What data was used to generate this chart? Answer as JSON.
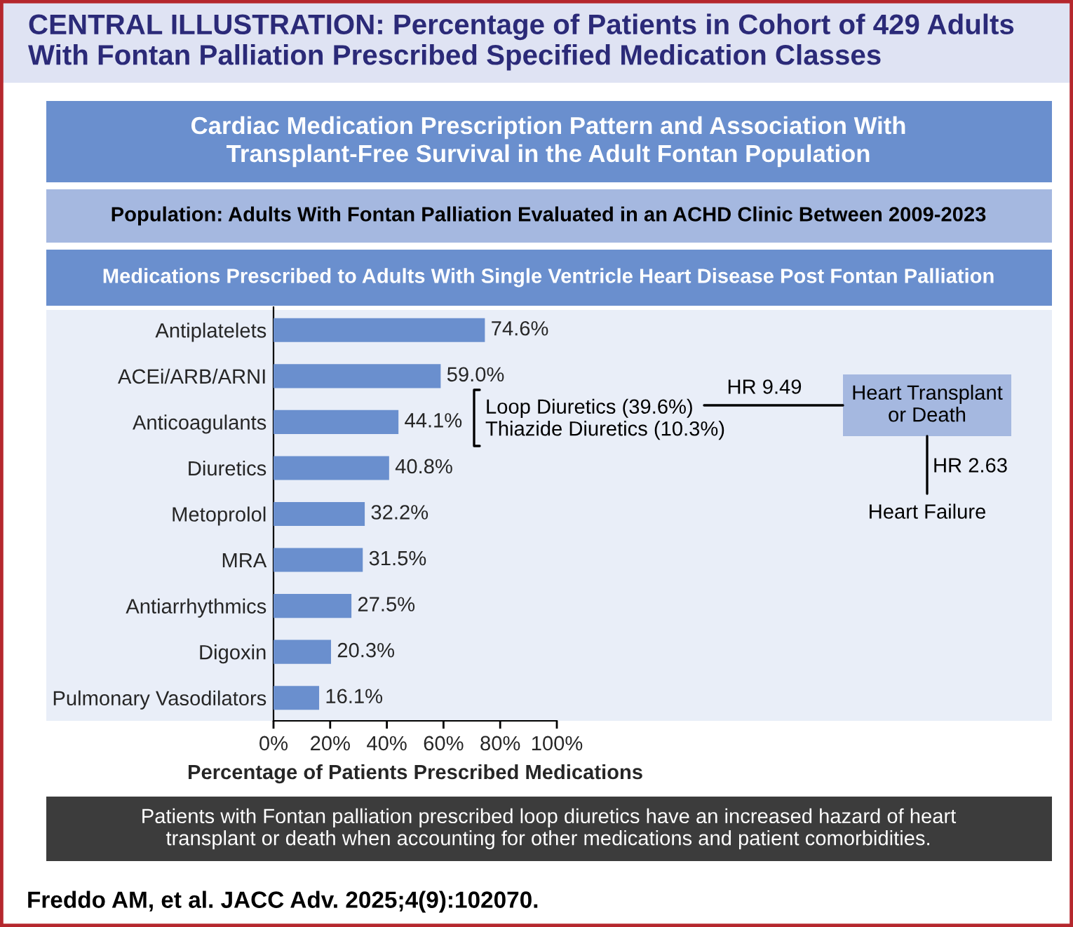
{
  "chart_data": {
    "type": "bar",
    "orientation": "horizontal",
    "title": "CENTRAL ILLUSTRATION: Percentage of Patients in Cohort of 429 Adults With Fontan Palliation Prescribed Specified Medication Classes",
    "subtitle": "Cardiac Medication Prescription Pattern and Association With\nTransplant-Free Survival in the Adult Fontan Population",
    "categories": [
      "Antiplatelets",
      "ACEi/ARB/ARNI",
      "Anticoagulants",
      "Diuretics",
      "Metoprolol",
      "MRA",
      "Antiarrhythmics",
      "Digoxin",
      "Pulmonary Vasodilators"
    ],
    "values": [
      74.6,
      59.0,
      44.1,
      40.8,
      32.2,
      31.5,
      27.5,
      20.3,
      16.1
    ],
    "value_labels": [
      "74.6%",
      "59.0%",
      "44.1%",
      "40.8%",
      "32.2%",
      "31.5%",
      "27.5%",
      "20.3%",
      "16.1%"
    ],
    "color": "#6a8fce",
    "xlim": [
      0,
      100
    ],
    "xticks": [
      {
        "value": 0,
        "label": "0%"
      },
      {
        "value": 20,
        "label": "20%"
      },
      {
        "value": 40,
        "label": "40%"
      },
      {
        "value": 60,
        "label": "60%"
      },
      {
        "value": 80,
        "label": "80%"
      },
      {
        "value": 100,
        "label": "100%"
      }
    ],
    "xlabel": "Percentage of Patients Prescribed Medications",
    "grid": false,
    "annotations": [
      "Population: Adults With Fontan Palliation Evaluated in an ACHD Clinic Between 2009-2023",
      "Medications Prescribed to Adults With Single Ventricle Heart Disease Post Fontan Palliation",
      "Loop Diuretics (39.6%)\nThiazide Diuretics (10.3%)",
      "HR 9.49",
      "Heart Transplant\nor Death",
      "HR 2.63",
      "Heart Failure",
      "Patients with Fontan palliation prescribed loop diuretics have an increased hazard of heart\ntransplant or death when accounting for other medications and patient comorbidities.",
      "Freddo AM, et al. JACC Adv. 2025;4(9):102070."
    ]
  }
}
